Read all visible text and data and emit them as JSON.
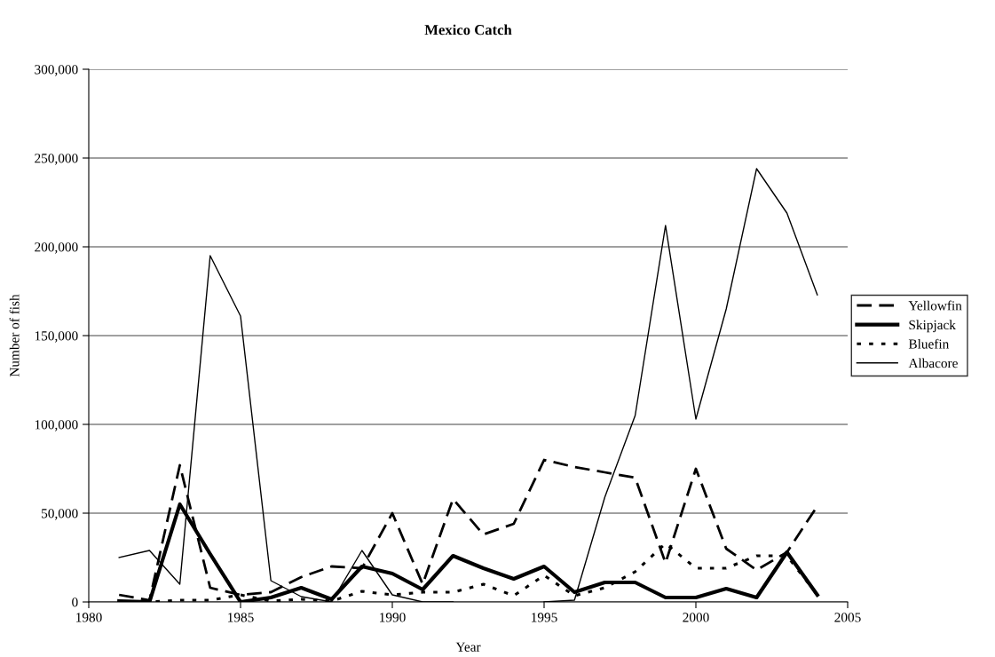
{
  "chart_data": {
    "type": "line",
    "title": "Mexico Catch",
    "xlabel": "Year",
    "ylabel": "Number of fish",
    "x": [
      1981,
      1982,
      1983,
      1984,
      1985,
      1986,
      1987,
      1988,
      1989,
      1990,
      1991,
      1992,
      1993,
      1994,
      1995,
      1996,
      1997,
      1998,
      1999,
      2000,
      2001,
      2002,
      2003,
      2004
    ],
    "xlim": [
      1980,
      2005
    ],
    "xticks": [
      1980,
      1985,
      1990,
      1995,
      2000,
      2005
    ],
    "ylim": [
      0,
      300000
    ],
    "yticks": [
      {
        "value": 0,
        "label": "0"
      },
      {
        "value": 50000,
        "label": "50,000"
      },
      {
        "value": 100000,
        "label": "100,000"
      },
      {
        "value": 150000,
        "label": "150,000"
      },
      {
        "value": 200000,
        "label": "200,000"
      },
      {
        "value": 250000,
        "label": "250,000"
      },
      {
        "value": 300000,
        "label": "300,000"
      }
    ],
    "grid": "y",
    "legend": "right",
    "marker": "none",
    "series": [
      {
        "name": "Yellowfin",
        "color": "#000000",
        "line_style": "dashed",
        "values": [
          4000,
          1000,
          77000,
          8000,
          4000,
          5500,
          14000,
          20000,
          19000,
          50000,
          10000,
          58000,
          38000,
          44000,
          80000,
          76000,
          73000,
          70000,
          22000,
          75000,
          30000,
          18000,
          28000,
          54000
        ]
      },
      {
        "name": "Skipjack",
        "color": "#000000",
        "line_style": "solid",
        "values": [
          500,
          0,
          55000,
          27000,
          0,
          2500,
          8000,
          1500,
          20000,
          16000,
          7000,
          26000,
          19000,
          13000,
          20000,
          5500,
          11000,
          11000,
          2500,
          2500,
          7500,
          2500,
          28000,
          4000
        ]
      },
      {
        "name": "Bluefin",
        "color": "#000000",
        "line_style": "dotted",
        "values": [
          0,
          0,
          1000,
          1000,
          4000,
          500,
          1500,
          500,
          6000,
          4000,
          5500,
          5500,
          10000,
          3500,
          15000,
          3500,
          8000,
          17000,
          33000,
          19000,
          19000,
          26000,
          26000,
          4000
        ]
      },
      {
        "name": "Albacore",
        "color": "#000000",
        "line_style": "solid",
        "values": [
          25000,
          29000,
          10000,
          195000,
          161000,
          12000,
          3000,
          0,
          29000,
          4000,
          0,
          0,
          null,
          null,
          0,
          1000,
          59000,
          105000,
          212000,
          103000,
          165000,
          244000,
          219000,
          173000
        ]
      }
    ]
  }
}
